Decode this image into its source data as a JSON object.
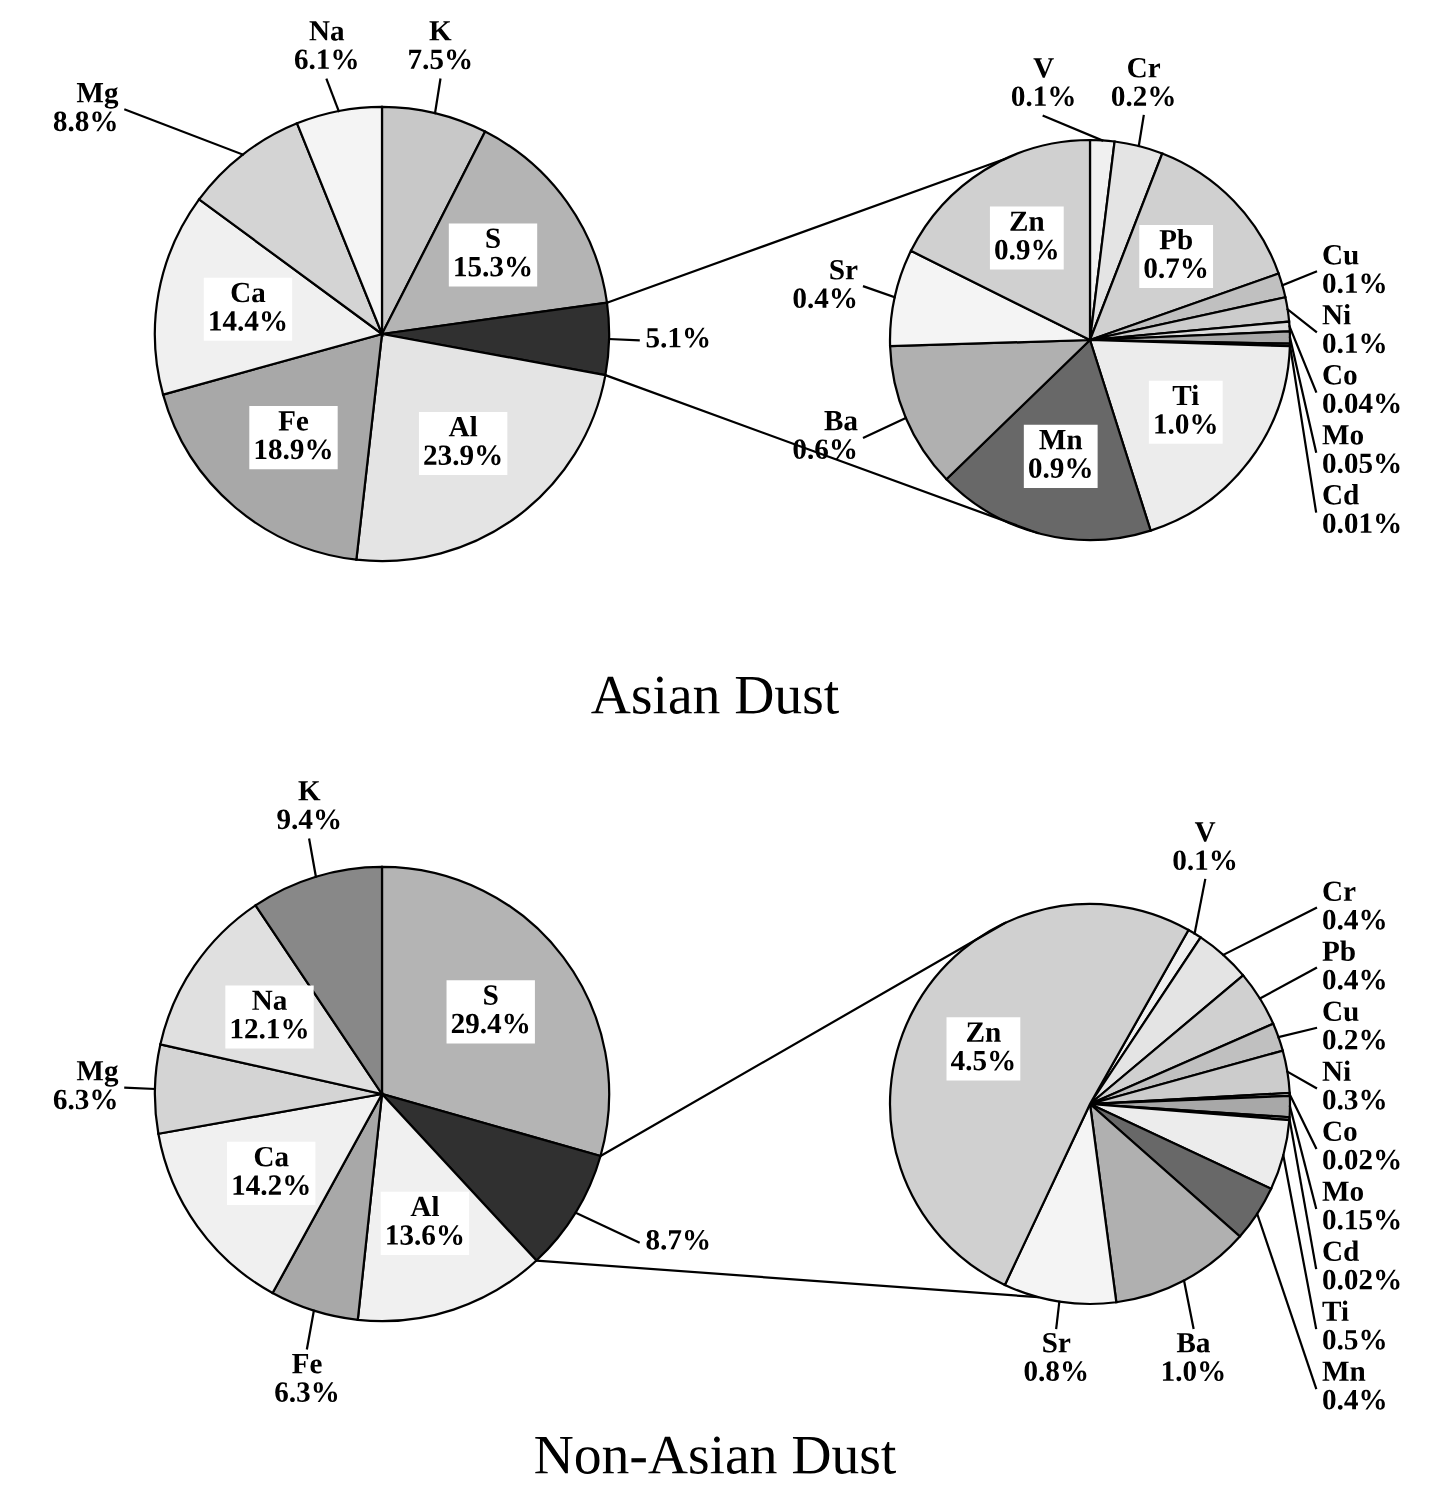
{
  "chart_data": [
    {
      "type": "pie",
      "title": "Asian Dust",
      "categories": [
        "K",
        "S",
        null,
        "Al",
        "Fe",
        "Ca",
        "Mg",
        "Na"
      ],
      "values": [
        7.5,
        15.3,
        5.1,
        23.9,
        18.9,
        14.4,
        8.8,
        6.1
      ],
      "colors": [
        "#c8c8c8",
        "#b4b4b4",
        "#303030",
        "#e4e4e4",
        "#a8a8a8",
        "#f0f0f0",
        "#d4d4d4",
        "#f4f4f4"
      ],
      "value_labels": [
        "7.5%",
        "15.3%",
        "5.1%",
        "23.9%",
        "18.9%",
        "14.4%",
        "8.8%",
        "6.1%"
      ]
    },
    {
      "type": "pie",
      "categories": [
        "V",
        "Cr",
        "Pb",
        "Cu",
        "Ni",
        "Co",
        "Mo",
        "Cd",
        "Ti",
        "Mn",
        "Ba",
        "Sr",
        "Zn"
      ],
      "values": [
        0.1,
        0.2,
        0.7,
        0.1,
        0.1,
        0.04,
        0.05,
        0.01,
        1.0,
        0.9,
        0.6,
        0.4,
        0.9
      ],
      "colors": [
        "#f0f0f0",
        "#e4e4e4",
        "#d0d0d0",
        "#c0c0c0",
        "#cccccc",
        "#dcdcdc",
        "#a8a8a8",
        "#989898",
        "#ececec",
        "#686868",
        "#b0b0b0",
        "#f4f4f4",
        "#d0d0d0"
      ],
      "value_labels": [
        "0.1%",
        "0.2%",
        "0.7%",
        "0.1%",
        "0.1%",
        "0.04%",
        "0.05%",
        "0.01%",
        "1.0%",
        "0.9%",
        "0.6%",
        "0.4%",
        "0.9%"
      ]
    },
    {
      "type": "pie",
      "title": "Non-Asian Dust",
      "categories": [
        "S",
        null,
        "Al",
        "Fe",
        "Ca",
        "Mg",
        "Na",
        "K"
      ],
      "values": [
        29.4,
        8.7,
        13.6,
        6.3,
        14.2,
        6.3,
        12.1,
        9.4
      ],
      "colors": [
        "#b4b4b4",
        "#303030",
        "#f0f0f0",
        "#a8a8a8",
        "#f0f0f0",
        "#d4d4d4",
        "#e0e0e0",
        "#888888"
      ],
      "value_labels": [
        "29.4%",
        "8.7%",
        "13.6%",
        "6.3%",
        "14.2%",
        "6.3%",
        "12.1%",
        "9.4%"
      ]
    },
    {
      "type": "pie",
      "categories": [
        "V",
        "Cr",
        "Pb",
        "Cu",
        "Ni",
        "Co",
        "Mo",
        "Cd",
        "Ti",
        "Mn",
        "Ba",
        "Sr",
        "Zn"
      ],
      "values": [
        0.1,
        0.4,
        0.4,
        0.2,
        0.3,
        0.02,
        0.15,
        0.02,
        0.5,
        0.4,
        1.0,
        0.8,
        4.5
      ],
      "colors": [
        "#f0f0f0",
        "#e4e4e4",
        "#d0d0d0",
        "#c0c0c0",
        "#cccccc",
        "#dcdcdc",
        "#a8a8a8",
        "#989898",
        "#ececec",
        "#686868",
        "#b0b0b0",
        "#f4f4f4",
        "#d0d0d0"
      ],
      "value_labels": [
        "0.1%",
        "0.4%",
        "0.4%",
        "0.2%",
        "0.3%",
        "0.02%",
        "0.15%",
        "0.02%",
        "0.5%",
        "0.4%",
        "1.0%",
        "0.8%",
        "4.5%"
      ]
    }
  ]
}
